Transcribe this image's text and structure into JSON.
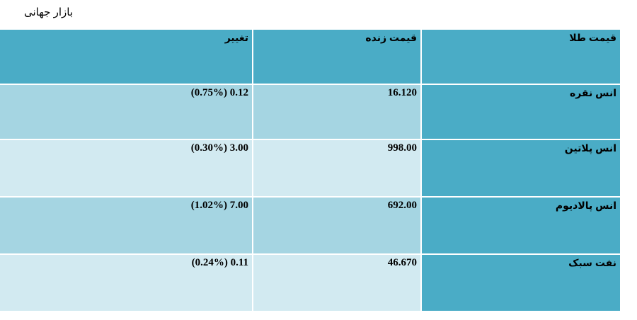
{
  "title": "بازار جهانی",
  "table": {
    "headers": {
      "change": "تغییر",
      "live_price": "قیمت زنده",
      "gold_price": "قیمت طلا"
    },
    "rows": [
      {
        "name": "انس نقره",
        "price": "16.120",
        "change": "(0.75%) 0.12"
      },
      {
        "name": "انس پلاتین",
        "price": "998.00",
        "change": "(0.30%) 3.00"
      },
      {
        "name": "انس پالادیوم",
        "price": "692.00",
        "change": "(1.02%) 7.00"
      },
      {
        "name": "نفت سبک",
        "price": "46.670",
        "change": "(0.24%) 0.11"
      }
    ]
  },
  "colors": {
    "header": "#4aacc6",
    "row_dark": "#a5d5e2",
    "row_light": "#d2eaf1"
  }
}
